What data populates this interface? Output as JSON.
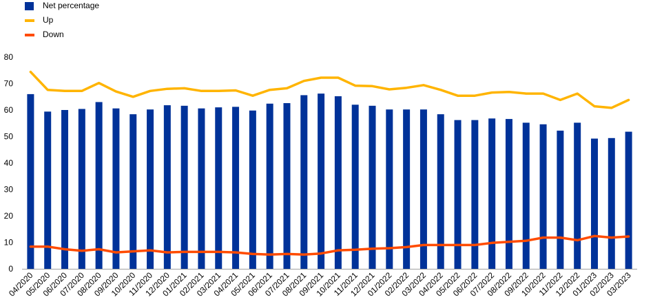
{
  "chart_data": {
    "type": "bar",
    "title": "",
    "xlabel": "",
    "ylabel": "",
    "ylim": [
      0,
      80
    ],
    "yticks": [
      0,
      10,
      20,
      30,
      40,
      50,
      60,
      70,
      80
    ],
    "grid": false,
    "legend_position": "top-left",
    "categories": [
      "04/2020",
      "05/2020",
      "06/2020",
      "07/2020",
      "08/2020",
      "09/2020",
      "10/2020",
      "11/2020",
      "12/2020",
      "01/2021",
      "02/2021",
      "03/2021",
      "04/2021",
      "05/2021",
      "06/2021",
      "07/2021",
      "08/2021",
      "09/2021",
      "10/2021",
      "11/2021",
      "12/2021",
      "01/2022",
      "02/2022",
      "03/2022",
      "04/2022",
      "05/2022",
      "06/2022",
      "07/2022",
      "08/2022",
      "09/2022",
      "10/2022",
      "11/2022",
      "12/2022",
      "01/2023",
      "02/2023",
      "03/2023"
    ],
    "series": [
      {
        "name": "Net percentage",
        "type": "bar",
        "color": "#003299",
        "values": [
          66,
          59.4,
          60,
          60.4,
          63,
          60.6,
          58.4,
          60.2,
          61.8,
          61.6,
          60.6,
          61,
          61.2,
          59.8,
          62.4,
          62.6,
          65.6,
          66.2,
          65.2,
          62,
          61.6,
          60.2,
          60.2,
          60.2,
          58.4,
          56.2,
          56.2,
          56.8,
          56.6,
          55.2,
          54.6,
          52.2,
          55.2,
          49.2,
          49.4,
          51.8
        ]
      },
      {
        "name": "Up",
        "type": "line",
        "color": "#FFB400",
        "values": [
          74.4,
          67.6,
          67.2,
          67.2,
          70.2,
          67,
          65,
          67.2,
          68,
          68.2,
          67.2,
          67.2,
          67.4,
          65.4,
          67.6,
          68.2,
          71,
          72.2,
          72.2,
          69.2,
          69,
          67.8,
          68.4,
          69.4,
          67.6,
          65.4,
          65.4,
          66.6,
          66.8,
          66.2,
          66.2,
          63.8,
          66.2,
          61.4,
          60.8,
          63.8
        ]
      },
      {
        "name": "Down",
        "type": "line",
        "color": "#FF4B00",
        "values": [
          8.4,
          8.4,
          7.4,
          6.8,
          7.4,
          6.2,
          6.6,
          7,
          6.2,
          6.4,
          6.4,
          6.4,
          6.2,
          5.6,
          5.4,
          5.6,
          5.4,
          5.8,
          7,
          7.2,
          7.6,
          7.8,
          8.2,
          9,
          9,
          9,
          9,
          9.8,
          10.2,
          10.6,
          11.8,
          11.8,
          10.8,
          12.4,
          11.8,
          12.2
        ]
      }
    ]
  }
}
